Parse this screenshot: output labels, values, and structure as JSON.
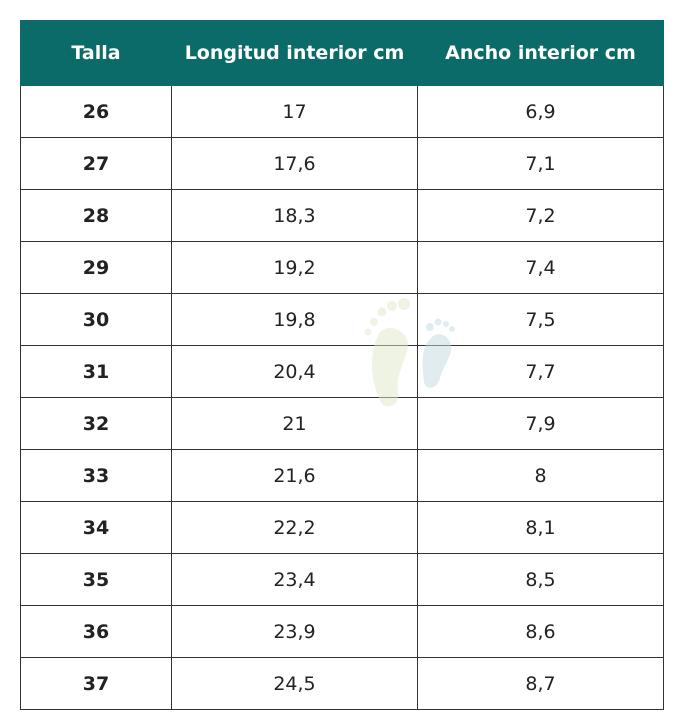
{
  "table": {
    "header": [
      "Talla",
      "Longitud interior cm",
      "Ancho interior cm"
    ],
    "rows": [
      [
        "26",
        "17",
        "6,9"
      ],
      [
        "27",
        "17,6",
        "7,1"
      ],
      [
        "28",
        "18,3",
        "7,2"
      ],
      [
        "29",
        "19,2",
        "7,4"
      ],
      [
        "30",
        "19,8",
        "7,5"
      ],
      [
        "31",
        "20,4",
        "7,7"
      ],
      [
        "32",
        "21",
        "7,9"
      ],
      [
        "33",
        "21,6",
        "8"
      ],
      [
        "34",
        "22,2",
        "8,1"
      ],
      [
        "35",
        "23,4",
        "8,5"
      ],
      [
        "36",
        "23,9",
        "8,6"
      ],
      [
        "37",
        "24,5",
        "8,7"
      ]
    ]
  }
}
